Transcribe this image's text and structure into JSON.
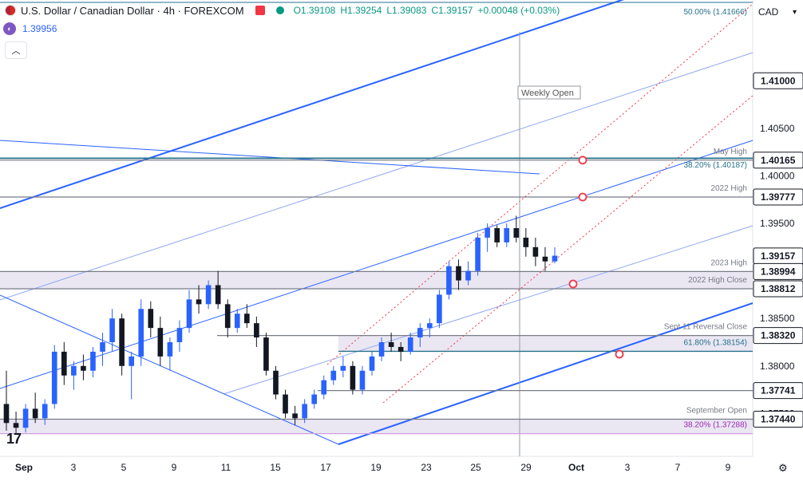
{
  "header": {
    "title": "U.S. Dollar / Canadian Dollar · 4h · FOREXCOM",
    "open": "O1.39108",
    "high": "H1.39254",
    "low": "L1.39083",
    "close": "C1.39157",
    "change": "+0.00048 (+0.03%)",
    "indicator_value": "1.39956",
    "currency": "CAD"
  },
  "colors": {
    "up": "#2962ff",
    "down": "#131722",
    "trend_blue": "#2962ff",
    "level_gray": "#787b86",
    "fib_teal": "#26728c",
    "zone_fill": "#e8e4f2",
    "marker_red": "#f23645",
    "fib_purple": "#9c27b0"
  },
  "chart_data": {
    "type": "candlestick",
    "symbol": "USDCAD",
    "timeframe": "4h",
    "ylim": [
      1.3705,
      1.4185
    ],
    "price_ticks": [
      1.375,
      1.38,
      1.385,
      1.39,
      1.395,
      1.4,
      1.405,
      1.41
    ],
    "x_ticks": [
      "Sep",
      "3",
      "5",
      "9",
      "11",
      "15",
      "17",
      "19",
      "23",
      "25",
      "29",
      "Oct",
      "3",
      "7",
      "9"
    ],
    "candles": [
      [
        1.376,
        1.3795,
        1.3732,
        1.374
      ],
      [
        1.374,
        1.3752,
        1.3728,
        1.3735
      ],
      [
        1.3735,
        1.376,
        1.373,
        1.3755
      ],
      [
        1.3755,
        1.3772,
        1.374,
        1.3745
      ],
      [
        1.3745,
        1.3765,
        1.3738,
        1.376
      ],
      [
        1.376,
        1.3822,
        1.3755,
        1.3815
      ],
      [
        1.3815,
        1.3825,
        1.378,
        1.379
      ],
      [
        1.379,
        1.3805,
        1.3775,
        1.38
      ],
      [
        1.38,
        1.3812,
        1.3785,
        1.3795
      ],
      [
        1.3795,
        1.382,
        1.3788,
        1.3815
      ],
      [
        1.3815,
        1.3835,
        1.38,
        1.3825
      ],
      [
        1.3825,
        1.386,
        1.3815,
        1.385
      ],
      [
        1.385,
        1.3855,
        1.379,
        1.38
      ],
      [
        1.38,
        1.3815,
        1.3765,
        1.381
      ],
      [
        1.381,
        1.387,
        1.38,
        1.386
      ],
      [
        1.386,
        1.3868,
        1.383,
        1.384
      ],
      [
        1.384,
        1.3852,
        1.38,
        1.381
      ],
      [
        1.381,
        1.383,
        1.3795,
        1.3825
      ],
      [
        1.3825,
        1.3848,
        1.3815,
        1.384
      ],
      [
        1.384,
        1.388,
        1.3835,
        1.387
      ],
      [
        1.387,
        1.3885,
        1.3855,
        1.3865
      ],
      [
        1.3865,
        1.389,
        1.386,
        1.3885
      ],
      [
        1.3885,
        1.39,
        1.386,
        1.3865
      ],
      [
        1.3865,
        1.387,
        1.383,
        1.384
      ],
      [
        1.384,
        1.386,
        1.3835,
        1.3855
      ],
      [
        1.3855,
        1.3865,
        1.384,
        1.3845
      ],
      [
        1.3845,
        1.3852,
        1.382,
        1.383
      ],
      [
        1.383,
        1.3835,
        1.379,
        1.3795
      ],
      [
        1.3795,
        1.38,
        1.3765,
        1.377
      ],
      [
        1.377,
        1.3775,
        1.3745,
        1.375
      ],
      [
        1.375,
        1.3758,
        1.3738,
        1.3745
      ],
      [
        1.3745,
        1.3765,
        1.374,
        1.376
      ],
      [
        1.376,
        1.3775,
        1.3755,
        1.377
      ],
      [
        1.377,
        1.379,
        1.3765,
        1.3785
      ],
      [
        1.3785,
        1.38,
        1.378,
        1.3795
      ],
      [
        1.3795,
        1.381,
        1.3788,
        1.38
      ],
      [
        1.38,
        1.3805,
        1.377,
        1.3775
      ],
      [
        1.3775,
        1.38,
        1.377,
        1.3795
      ],
      [
        1.3795,
        1.3815,
        1.379,
        1.381
      ],
      [
        1.381,
        1.383,
        1.3805,
        1.3825
      ],
      [
        1.3825,
        1.3835,
        1.3815,
        1.382
      ],
      [
        1.382,
        1.3825,
        1.3805,
        1.3815
      ],
      [
        1.3815,
        1.3835,
        1.3812,
        1.383
      ],
      [
        1.383,
        1.3845,
        1.382,
        1.384
      ],
      [
        1.384,
        1.385,
        1.383,
        1.3845
      ],
      [
        1.3845,
        1.388,
        1.384,
        1.3875
      ],
      [
        1.3875,
        1.391,
        1.387,
        1.3905
      ],
      [
        1.3905,
        1.3912,
        1.388,
        1.389
      ],
      [
        1.389,
        1.391,
        1.3885,
        1.39
      ],
      [
        1.39,
        1.394,
        1.3895,
        1.3935
      ],
      [
        1.3935,
        1.395,
        1.392,
        1.3945
      ],
      [
        1.3945,
        1.3948,
        1.3925,
        1.393
      ],
      [
        1.393,
        1.395,
        1.3925,
        1.3945
      ],
      [
        1.3945,
        1.3958,
        1.393,
        1.3935
      ],
      [
        1.3935,
        1.3945,
        1.3915,
        1.3925
      ],
      [
        1.3925,
        1.3935,
        1.3905,
        1.3915
      ],
      [
        1.3915,
        1.3925,
        1.39,
        1.391
      ],
      [
        1.391,
        1.3925,
        1.3908,
        1.3916
      ]
    ],
    "levels": [
      {
        "price": 1.41666,
        "label": "50.00% (1.41666)",
        "style": "fib"
      },
      {
        "price": 1.40187,
        "label": "38.20% (1.40187)",
        "style": "fib"
      },
      {
        "price": 1.40165,
        "label": "May High",
        "style": "gray"
      },
      {
        "price": 1.39777,
        "label": "2022 High",
        "style": "gray"
      },
      {
        "price": 1.38994,
        "label": "2023 High",
        "style": "gray"
      },
      {
        "price": 1.38812,
        "label": "2022 High Close",
        "style": "gray"
      },
      {
        "price": 1.3832,
        "label": "Sept 11 Reversal Close",
        "style": "gray"
      },
      {
        "price": 1.38154,
        "label": "61.80% (1.38154)",
        "style": "fib"
      },
      {
        "price": 1.37741,
        "label": "",
        "style": "gray"
      },
      {
        "price": 1.3744,
        "label": "September Open",
        "style": "gray"
      },
      {
        "price": 1.37288,
        "label": "38.20% (1.37288)",
        "style": "fib_purple"
      }
    ],
    "axis_tags": [
      {
        "price": 1.41,
        "text": "1.41000",
        "style": "plain-box"
      },
      {
        "price": 1.40165,
        "text": "1.40165",
        "style": "box"
      },
      {
        "price": 1.39777,
        "text": "1.39777",
        "style": "box"
      },
      {
        "price": 1.39157,
        "text": "1.39157",
        "style": "box"
      },
      {
        "price": 1.38994,
        "text": "1.38994",
        "style": "box"
      },
      {
        "price": 1.38812,
        "text": "1.38812",
        "style": "box"
      },
      {
        "price": 1.3832,
        "text": "1.38320",
        "style": "box"
      },
      {
        "price": 1.37741,
        "text": "1.37741",
        "style": "box"
      },
      {
        "price": 1.3744,
        "text": "1.37440",
        "style": "box"
      }
    ],
    "weekly_open_label": "Weekly Open"
  }
}
